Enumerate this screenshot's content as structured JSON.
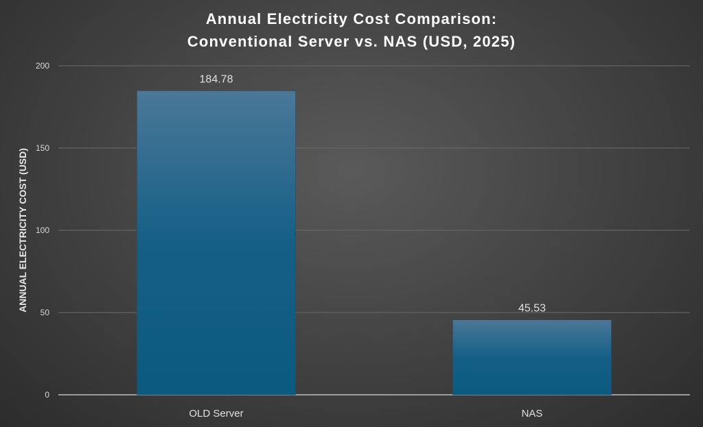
{
  "chart_data": {
    "type": "bar",
    "title": [
      "Annual Electricity Cost Comparison:",
      "Conventional Server vs. NAS (USD, 2025)"
    ],
    "xlabel": "",
    "ylabel": "ANNUAL ELECTRICITY COST (USD)",
    "categories": [
      "OLD Server",
      "NAS"
    ],
    "values": [
      184.78,
      45.53
    ],
    "data_labels": [
      "184.78",
      "45.53"
    ],
    "ylim": [
      0,
      200
    ],
    "yticks": [
      0,
      50,
      100,
      150,
      200
    ],
    "grid": true,
    "legend": "none",
    "colors": {
      "bar_top": "#4a7898",
      "bar_bottom": "#0b5a80",
      "text": "#d9d9d9",
      "title": "#ffffff"
    }
  }
}
